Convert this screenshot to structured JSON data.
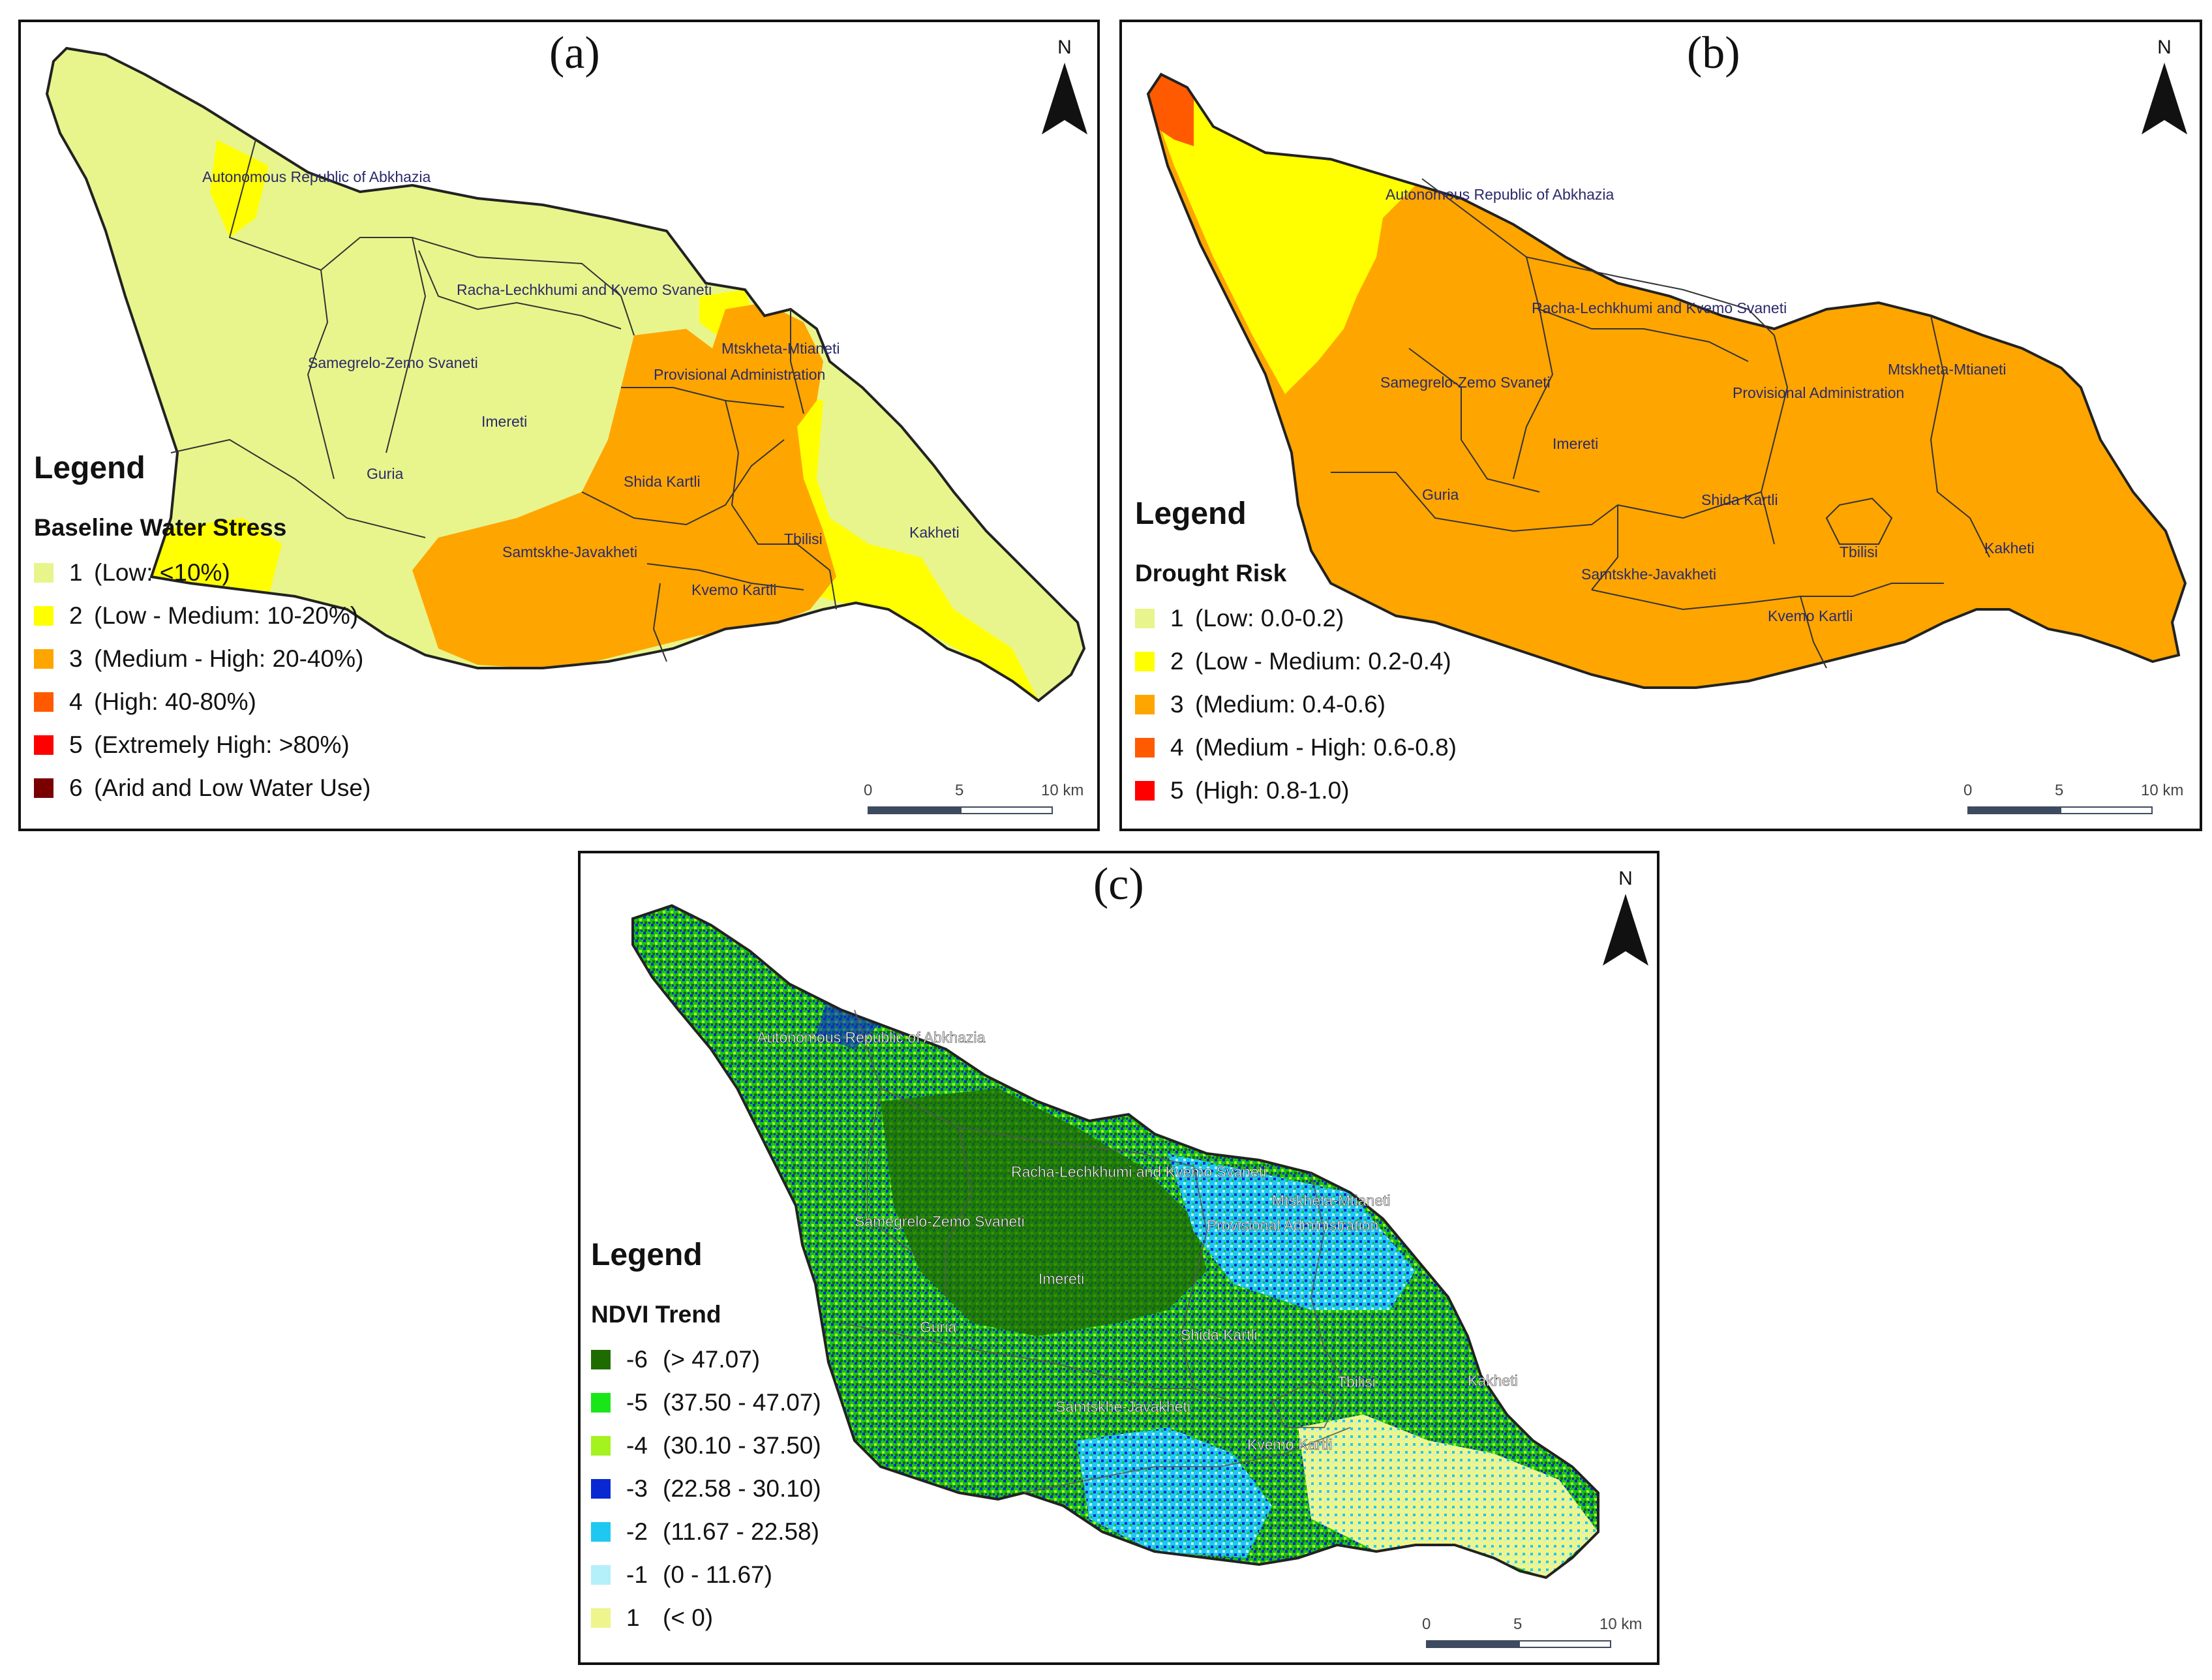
{
  "panels": {
    "a": {
      "label": "(a)",
      "north": "N",
      "legend_title": "Legend",
      "legend_subtitle": "Baseline Water Stress",
      "legend_items": [
        {
          "code": "1",
          "text": "(Low: <10%)",
          "color": "#e8f58c"
        },
        {
          "code": "2",
          "text": "(Low - Medium: 10-20%)",
          "color": "#ffff00"
        },
        {
          "code": "3",
          "text": "(Medium - High: 20-40%)",
          "color": "#ffa500"
        },
        {
          "code": "4",
          "text": "(High: 40-80%)",
          "color": "#ff5a00"
        },
        {
          "code": "5",
          "text": "(Extremely High: >80%)",
          "color": "#ff0000"
        },
        {
          "code": "6",
          "text": "(Arid and Low Water Use)",
          "color": "#7a0000"
        }
      ],
      "scale": {
        "t0": "0",
        "t1": "5",
        "t2": "10 km"
      },
      "regions": {
        "abkhazia": "Autonomous Republic of Abkhazia",
        "racha": "Racha-Lechkhumi and Kvemo Svaneti",
        "samegrelo": "Samegrelo-Zemo Svaneti",
        "imereti": "Imereti",
        "guria": "Guria",
        "mtskheta": "Mtskheta-Mtianeti",
        "provisional": "Provisional Administration",
        "shida": "Shida Kartli",
        "samtskhe": "Samtskhe-Javakheti",
        "tbilisi": "Tbilisi",
        "kvemo": "Kvemo Kartli",
        "kakheti": "Kakheti"
      }
    },
    "b": {
      "label": "(b)",
      "north": "N",
      "legend_title": "Legend",
      "legend_subtitle": "Drought Risk",
      "legend_items": [
        {
          "code": "1",
          "text": "(Low: 0.0-0.2)",
          "color": "#e8f58c"
        },
        {
          "code": "2",
          "text": "(Low - Medium: 0.2-0.4)",
          "color": "#ffff00"
        },
        {
          "code": "3",
          "text": "(Medium: 0.4-0.6)",
          "color": "#ffa500"
        },
        {
          "code": "4",
          "text": "(Medium - High: 0.6-0.8)",
          "color": "#ff5a00"
        },
        {
          "code": "5",
          "text": "(High: 0.8-1.0)",
          "color": "#ff0000"
        }
      ],
      "scale": {
        "t0": "0",
        "t1": "5",
        "t2": "10 km"
      },
      "regions": {
        "abkhazia": "Autonomous Republic of Abkhazia",
        "racha": "Racha-Lechkhumi and Kvemo Svaneti",
        "samegrelo": "Samegrelo-Zemo Svaneti",
        "imereti": "Imereti",
        "guria": "Guria",
        "mtskheta": "Mtskheta-Mtianeti",
        "provisional": "Provisional Administration",
        "shida": "Shida Kartli",
        "samtskhe": "Samtskhe-Javakheti",
        "tbilisi": "Tbilisi",
        "kvemo": "Kvemo Kartli",
        "kakheti": "Kakheti"
      }
    },
    "c": {
      "label": "(c)",
      "north": "N",
      "legend_title": "Legend",
      "legend_subtitle": "NDVI Trend",
      "legend_items": [
        {
          "code": "-6",
          "text": "(> 47.07)",
          "color": "#1e6b00"
        },
        {
          "code": "-5",
          "text": "(37.50 - 47.07)",
          "color": "#19e619"
        },
        {
          "code": "-4",
          "text": "(30.10 - 37.50)",
          "color": "#a4f21e"
        },
        {
          "code": "-3",
          "text": "(22.58 - 30.10)",
          "color": "#0a28d2"
        },
        {
          "code": "-2",
          "text": "(11.67 - 22.58)",
          "color": "#1ec8f0"
        },
        {
          "code": "-1",
          "text": "(0 - 11.67)",
          "color": "#b4f0fa"
        },
        {
          "code": "1",
          "text": "(< 0)",
          "color": "#eef58c"
        }
      ],
      "scale": {
        "t0": "0",
        "t1": "5",
        "t2": "10 km"
      },
      "regions": {
        "abkhazia": "Autonomous Republic of Abkhazia",
        "racha": "Racha-Lechkhumi and Kvemo Svaneti",
        "samegrelo": "Samegrelo-Zemo Svaneti",
        "imereti": "Imereti",
        "guria": "Guria",
        "mtskheta": "Mtskheta-Mtianeti",
        "provisional": "Provisional Administration",
        "shida": "Shida Kartli",
        "samtskhe": "Samtskhe-Javakheti",
        "tbilisi": "Tbilisi",
        "kvemo": "Kvemo Kartli",
        "kakheti": "Kakheti"
      }
    }
  }
}
